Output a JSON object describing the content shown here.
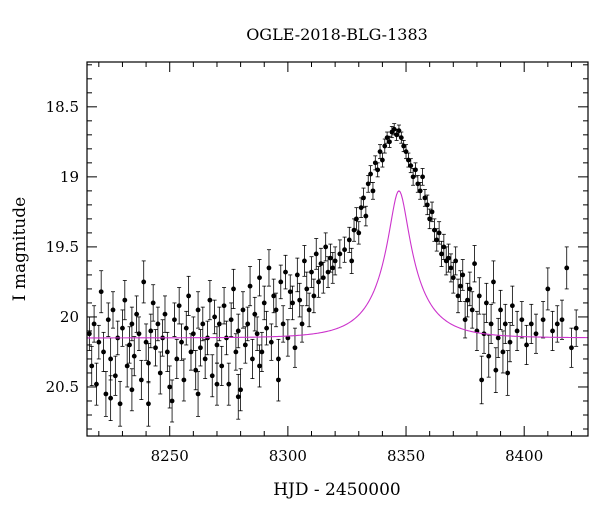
{
  "chart_data": {
    "type": "scatter",
    "title": "OGLE-2018-BLG-1383",
    "xlabel": "HJD - 2450000",
    "ylabel": "I magnitude",
    "xlim": [
      8215,
      8427
    ],
    "ylim": [
      20.85,
      18.18
    ],
    "y_inverted": true,
    "x_ticks": [
      8250,
      8300,
      8350,
      8400
    ],
    "x_tick_labels": [
      "8250",
      "8300",
      "8350",
      "8400"
    ],
    "y_ticks": [
      18.5,
      19,
      19.5,
      20,
      20.5
    ],
    "y_tick_labels": [
      "18.5",
      "19",
      "19.5",
      "20",
      "20.5"
    ],
    "grid": false,
    "series": [
      {
        "kind": "points_with_errorbars",
        "color": "#000000",
        "points": [
          [
            8216,
            20.12,
            0.12
          ],
          [
            8217,
            20.35,
            0.14
          ],
          [
            8218,
            20.05,
            0.13
          ],
          [
            8219,
            20.48,
            0.15
          ],
          [
            8220,
            20.18,
            0.12
          ],
          [
            8221,
            19.82,
            0.15
          ],
          [
            8222,
            20.25,
            0.14
          ],
          [
            8223,
            20.55,
            0.16
          ],
          [
            8224,
            20.02,
            0.12
          ],
          [
            8225,
            20.3,
            0.15
          ],
          [
            8226,
            19.95,
            0.13
          ],
          [
            8227,
            20.42,
            0.14
          ],
          [
            8228,
            20.15,
            0.12
          ],
          [
            8229,
            20.62,
            0.16
          ],
          [
            8230,
            20.08,
            0.13
          ],
          [
            8231,
            19.88,
            0.14
          ],
          [
            8232,
            20.35,
            0.15
          ],
          [
            8233,
            20.2,
            0.13
          ],
          [
            8234,
            20.05,
            0.12
          ],
          [
            8235,
            20.28,
            0.14
          ],
          [
            8236,
            19.98,
            0.13
          ],
          [
            8237,
            20.12,
            0.12
          ],
          [
            8238,
            20.45,
            0.14
          ],
          [
            8239,
            19.75,
            0.15
          ],
          [
            8240,
            20.18,
            0.13
          ],
          [
            8241,
            20.33,
            0.14
          ],
          [
            8242,
            20.1,
            0.12
          ],
          [
            8243,
            19.9,
            0.13
          ],
          [
            8244,
            20.22,
            0.13
          ],
          [
            8245,
            20.05,
            0.12
          ],
          [
            8246,
            20.4,
            0.15
          ],
          [
            8247,
            20.15,
            0.13
          ],
          [
            8248,
            19.98,
            0.13
          ],
          [
            8249,
            20.25,
            0.14
          ],
          [
            8250,
            20.5,
            0.15
          ],
          [
            8251,
            20.6,
            0.15
          ],
          [
            8252,
            20.02,
            0.12
          ],
          [
            8253,
            20.3,
            0.14
          ],
          [
            8254,
            19.92,
            0.13
          ],
          [
            8255,
            20.18,
            0.13
          ],
          [
            8256,
            20.45,
            0.15
          ],
          [
            8257,
            20.08,
            0.12
          ],
          [
            8258,
            19.85,
            0.14
          ],
          [
            8259,
            20.25,
            0.13
          ],
          [
            8260,
            20.12,
            0.12
          ],
          [
            8261,
            20.38,
            0.14
          ],
          [
            8262,
            19.95,
            0.13
          ],
          [
            8263,
            20.22,
            0.13
          ],
          [
            8264,
            20.05,
            0.12
          ],
          [
            8265,
            20.3,
            0.14
          ],
          [
            8266,
            20.15,
            0.12
          ],
          [
            8267,
            19.88,
            0.14
          ],
          [
            8268,
            20.42,
            0.15
          ],
          [
            8269,
            20.0,
            0.12
          ],
          [
            8270,
            20.2,
            0.13
          ],
          [
            8271,
            20.05,
            0.12
          ],
          [
            8272,
            20.35,
            0.14
          ],
          [
            8273,
            19.92,
            0.13
          ],
          [
            8274,
            20.15,
            0.12
          ],
          [
            8275,
            20.48,
            0.15
          ],
          [
            8276,
            20.02,
            0.12
          ],
          [
            8277,
            19.8,
            0.14
          ],
          [
            8278,
            20.25,
            0.13
          ],
          [
            8279,
            20.1,
            0.12
          ],
          [
            8280,
            20.52,
            0.15
          ],
          [
            8281,
            19.95,
            0.13
          ],
          [
            8282,
            20.2,
            0.13
          ],
          [
            8283,
            20.05,
            0.12
          ],
          [
            8284,
            19.78,
            0.14
          ],
          [
            8285,
            20.3,
            0.14
          ],
          [
            8286,
            19.98,
            0.12
          ],
          [
            8287,
            20.12,
            0.12
          ],
          [
            8288,
            19.72,
            0.13
          ],
          [
            8289,
            20.25,
            0.14
          ],
          [
            8290,
            19.9,
            0.12
          ],
          [
            8291,
            20.08,
            0.12
          ],
          [
            8292,
            19.65,
            0.13
          ],
          [
            8293,
            20.18,
            0.13
          ],
          [
            8294,
            19.85,
            0.12
          ],
          [
            8295,
            19.95,
            0.12
          ],
          [
            8296,
            20.3,
            0.14
          ],
          [
            8297,
            19.75,
            0.12
          ],
          [
            8298,
            20.05,
            0.13
          ],
          [
            8299,
            19.68,
            0.12
          ],
          [
            8300,
            20.15,
            0.13
          ],
          [
            8301,
            19.82,
            0.12
          ],
          [
            8302,
            19.9,
            0.12
          ],
          [
            8303,
            20.22,
            0.14
          ],
          [
            8304,
            19.7,
            0.12
          ],
          [
            8305,
            19.88,
            0.12
          ],
          [
            8306,
            20.05,
            0.13
          ],
          [
            8307,
            19.6,
            0.11
          ],
          [
            8308,
            19.8,
            0.12
          ],
          [
            8309,
            19.95,
            0.12
          ],
          [
            8310,
            19.68,
            0.11
          ],
          [
            8311,
            19.85,
            0.12
          ],
          [
            8312,
            19.55,
            0.11
          ],
          [
            8313,
            19.75,
            0.11
          ],
          [
            8314,
            19.62,
            0.11
          ],
          [
            8315,
            19.72,
            0.11
          ],
          [
            8316,
            19.5,
            0.1
          ],
          [
            8317,
            19.68,
            0.11
          ],
          [
            8318,
            19.58,
            0.1
          ],
          [
            8319,
            19.65,
            0.11
          ],
          [
            8320,
            19.6,
            0.1
          ],
          [
            8322,
            19.55,
            0.1
          ],
          [
            8324,
            19.52,
            0.09
          ],
          [
            8326,
            19.45,
            0.09
          ],
          [
            8327,
            19.6,
            0.09
          ],
          [
            8328,
            19.38,
            0.08
          ],
          [
            8329,
            19.3,
            0.08
          ],
          [
            8330,
            19.4,
            0.08
          ],
          [
            8331,
            19.22,
            0.07
          ],
          [
            8332,
            19.15,
            0.07
          ],
          [
            8333,
            19.28,
            0.07
          ],
          [
            8334,
            19.05,
            0.06
          ],
          [
            8335,
            18.98,
            0.06
          ],
          [
            8336,
            19.1,
            0.06
          ],
          [
            8337,
            18.9,
            0.05
          ],
          [
            8338,
            18.95,
            0.05
          ],
          [
            8339,
            18.82,
            0.05
          ],
          [
            8340,
            18.88,
            0.05
          ],
          [
            8341,
            18.78,
            0.05
          ],
          [
            8342,
            18.72,
            0.04
          ],
          [
            8343,
            18.75,
            0.04
          ],
          [
            8344,
            18.68,
            0.04
          ],
          [
            8345,
            18.66,
            0.04
          ],
          [
            8346,
            18.7,
            0.04
          ],
          [
            8347,
            18.67,
            0.04
          ],
          [
            8348,
            18.72,
            0.04
          ],
          [
            8349,
            18.78,
            0.04
          ],
          [
            8350,
            18.82,
            0.05
          ],
          [
            8351,
            18.88,
            0.05
          ],
          [
            8352,
            18.92,
            0.05
          ],
          [
            8353,
            19.0,
            0.06
          ],
          [
            8354,
            18.95,
            0.05
          ],
          [
            8355,
            19.05,
            0.06
          ],
          [
            8356,
            19.1,
            0.06
          ],
          [
            8357,
            19.0,
            0.06
          ],
          [
            8358,
            19.15,
            0.06
          ],
          [
            8359,
            19.2,
            0.07
          ],
          [
            8360,
            19.3,
            0.07
          ],
          [
            8361,
            19.25,
            0.07
          ],
          [
            8362,
            19.38,
            0.08
          ],
          [
            8363,
            19.45,
            0.08
          ],
          [
            8364,
            19.4,
            0.08
          ],
          [
            8365,
            19.55,
            0.09
          ],
          [
            8366,
            19.5,
            0.09
          ],
          [
            8367,
            19.6,
            0.1
          ],
          [
            8368,
            19.58,
            0.1
          ],
          [
            8369,
            19.65,
            0.1
          ],
          [
            8370,
            19.72,
            0.11
          ],
          [
            8371,
            19.6,
            0.1
          ],
          [
            8372,
            19.85,
            0.12
          ],
          [
            8373,
            19.78,
            0.11
          ],
          [
            8374,
            19.7,
            0.11
          ],
          [
            8375,
            20.02,
            0.13
          ],
          [
            8376,
            19.88,
            0.12
          ],
          [
            8377,
            19.8,
            0.12
          ],
          [
            8378,
            19.95,
            0.13
          ],
          [
            8379,
            19.62,
            0.13
          ],
          [
            8380,
            20.1,
            0.14
          ],
          [
            8381,
            19.85,
            0.13
          ],
          [
            8382,
            20.45,
            0.17
          ],
          [
            8383,
            20.12,
            0.14
          ],
          [
            8384,
            19.9,
            0.14
          ],
          [
            8385,
            20.28,
            0.15
          ],
          [
            8386,
            20.05,
            0.14
          ],
          [
            8387,
            19.75,
            0.15
          ],
          [
            8388,
            20.38,
            0.16
          ],
          [
            8389,
            20.15,
            0.14
          ],
          [
            8390,
            19.95,
            0.14
          ],
          [
            8391,
            20.25,
            0.15
          ],
          [
            8392,
            20.05,
            0.14
          ],
          [
            8393,
            20.4,
            0.16
          ],
          [
            8394,
            20.18,
            0.14
          ],
          [
            8395,
            19.92,
            0.14
          ],
          [
            8397,
            20.1,
            0.14
          ],
          [
            8399,
            20.02,
            0.13
          ],
          [
            8401,
            20.2,
            0.14
          ],
          [
            8403,
            20.05,
            0.14
          ],
          [
            8405,
            20.12,
            0.14
          ],
          [
            8408,
            20.02,
            0.13
          ],
          [
            8410,
            19.8,
            0.15
          ],
          [
            8412,
            20.1,
            0.14
          ],
          [
            8414,
            20.05,
            0.13
          ],
          [
            8416,
            20.02,
            0.14
          ],
          [
            8418,
            19.65,
            0.15
          ],
          [
            8420,
            20.22,
            0.14
          ],
          [
            8422,
            20.08,
            0.13
          ],
          [
            8225,
            20.58,
            0.16
          ],
          [
            8234,
            20.52,
            0.15
          ],
          [
            8262,
            20.55,
            0.16
          ],
          [
            8279,
            20.57,
            0.16
          ],
          [
            8296,
            20.45,
            0.15
          ],
          [
            8241,
            20.62,
            0.16
          ],
          [
            8270,
            20.48,
            0.15
          ],
          [
            8288,
            20.35,
            0.15
          ]
        ]
      },
      {
        "kind": "model_curve",
        "color": "#cc33cc",
        "baseline": 20.15,
        "t0": 8347,
        "u0": 0.2,
        "tE": 19,
        "x_range": [
          8215,
          8427
        ]
      }
    ]
  }
}
